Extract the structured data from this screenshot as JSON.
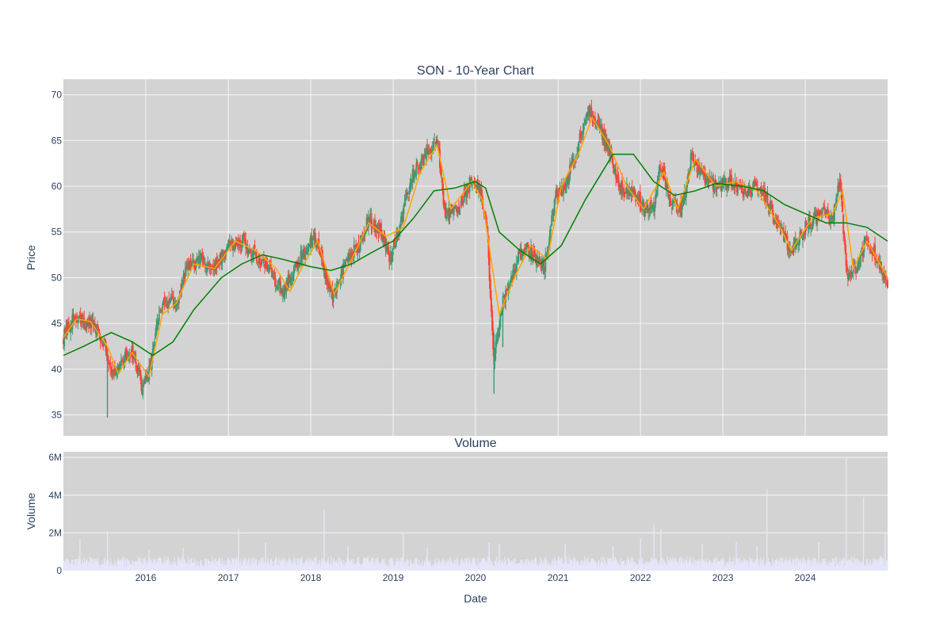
{
  "chart_data": [
    {
      "type": "candlestick",
      "title": "SON - 10-Year Chart",
      "ylabel": "Price",
      "xlabel": "",
      "xlim": [
        "2015-01-01",
        "2024-12-31"
      ],
      "ylim": [
        32.7,
        71.7
      ],
      "y_ticks": [
        35,
        40,
        45,
        50,
        55,
        60,
        65,
        70
      ],
      "grid": true,
      "colors": {
        "increasing": "#3d9970",
        "decreasing": "#ff4136",
        "ma_short": "#ffa500",
        "ma_long": "#008000",
        "background": "#d3d3d3"
      },
      "close_path": [
        [
          "2015-01-01",
          43.5
        ],
        [
          "2015-02-15",
          45.5
        ],
        [
          "2015-04-01",
          45.0
        ],
        [
          "2015-05-15",
          44.8
        ],
        [
          "2015-07-01",
          43.0
        ],
        [
          "2015-07-20",
          41.0
        ],
        [
          "2015-08-20",
          39.0
        ],
        [
          "2015-10-01",
          41.5
        ],
        [
          "2015-11-01",
          42.0
        ],
        [
          "2015-12-15",
          38.0
        ],
        [
          "2016-01-15",
          39.5
        ],
        [
          "2016-03-01",
          46.0
        ],
        [
          "2016-04-01",
          47.5
        ],
        [
          "2016-05-15",
          47.0
        ],
        [
          "2016-07-01",
          51.0
        ],
        [
          "2016-09-01",
          52.0
        ],
        [
          "2016-11-01",
          51.0
        ],
        [
          "2017-01-01",
          53.5
        ],
        [
          "2017-03-01",
          54.0
        ],
        [
          "2017-05-01",
          52.5
        ],
        [
          "2017-07-01",
          51.0
        ],
        [
          "2017-09-01",
          48.5
        ],
        [
          "2017-11-01",
          51.5
        ],
        [
          "2018-01-15",
          54.5
        ],
        [
          "2018-02-15",
          53.0
        ],
        [
          "2018-03-15",
          49.0
        ],
        [
          "2018-04-15",
          48.0
        ],
        [
          "2018-06-01",
          51.5
        ],
        [
          "2018-08-01",
          53.5
        ],
        [
          "2018-09-15",
          56.5
        ],
        [
          "2018-11-01",
          55.5
        ],
        [
          "2018-12-20",
          52.0
        ],
        [
          "2019-02-01",
          56.0
        ],
        [
          "2019-04-01",
          61.5
        ],
        [
          "2019-06-01",
          63.5
        ],
        [
          "2019-07-15",
          65.0
        ],
        [
          "2019-08-20",
          57.0
        ],
        [
          "2019-10-15",
          57.5
        ],
        [
          "2019-12-15",
          61.0
        ],
        [
          "2020-01-20",
          59.5
        ],
        [
          "2020-02-20",
          56.0
        ],
        [
          "2020-03-20",
          41.0
        ],
        [
          "2020-05-01",
          47.0
        ],
        [
          "2020-06-15",
          50.5
        ],
        [
          "2020-08-01",
          53.5
        ],
        [
          "2020-09-15",
          52.5
        ],
        [
          "2020-11-01",
          51.0
        ],
        [
          "2020-12-20",
          59.0
        ],
        [
          "2021-02-01",
          60.0
        ],
        [
          "2021-04-01",
          64.5
        ],
        [
          "2021-05-10",
          68.5
        ],
        [
          "2021-07-01",
          66.5
        ],
        [
          "2021-08-15",
          64.0
        ],
        [
          "2021-10-01",
          60.0
        ],
        [
          "2021-12-01",
          59.5
        ],
        [
          "2022-01-15",
          57.5
        ],
        [
          "2022-03-01",
          58.0
        ],
        [
          "2022-04-01",
          62.5
        ],
        [
          "2022-05-15",
          58.5
        ],
        [
          "2022-07-01",
          57.0
        ],
        [
          "2022-08-15",
          63.5
        ],
        [
          "2022-10-01",
          61.0
        ],
        [
          "2022-12-01",
          60.0
        ],
        [
          "2023-02-01",
          60.5
        ],
        [
          "2023-04-01",
          59.5
        ],
        [
          "2023-06-01",
          60.0
        ],
        [
          "2023-07-15",
          58.5
        ],
        [
          "2023-09-15",
          55.0
        ],
        [
          "2023-11-01",
          53.0
        ],
        [
          "2024-01-15",
          56.0
        ],
        [
          "2024-03-15",
          57.0
        ],
        [
          "2024-05-01",
          56.5
        ],
        [
          "2024-06-01",
          61.0
        ],
        [
          "2024-07-01",
          50.5
        ],
        [
          "2024-08-15",
          51.0
        ],
        [
          "2024-10-01",
          54.5
        ],
        [
          "2024-11-15",
          52.0
        ],
        [
          "2024-12-31",
          49.0
        ]
      ],
      "ma_short": [
        [
          "2015-01-01",
          43.5
        ],
        [
          "2015-03-01",
          45.5
        ],
        [
          "2015-05-01",
          45.2
        ],
        [
          "2015-07-15",
          42.5
        ],
        [
          "2015-09-01",
          39.5
        ],
        [
          "2015-11-01",
          41.8
        ],
        [
          "2016-01-15",
          39.2
        ],
        [
          "2016-03-15",
          46.0
        ],
        [
          "2016-05-15",
          47.2
        ],
        [
          "2016-08-01",
          51.5
        ],
        [
          "2016-11-01",
          51.0
        ],
        [
          "2017-02-01",
          54.0
        ],
        [
          "2017-05-01",
          53.0
        ],
        [
          "2017-08-01",
          51.0
        ],
        [
          "2017-10-01",
          48.5
        ],
        [
          "2017-12-01",
          51.5
        ],
        [
          "2018-02-01",
          54.0
        ],
        [
          "2018-04-15",
          48.2
        ],
        [
          "2018-07-01",
          52.0
        ],
        [
          "2018-09-15",
          56.0
        ],
        [
          "2018-12-01",
          54.5
        ],
        [
          "2019-02-15",
          55.5
        ],
        [
          "2019-05-01",
          61.5
        ],
        [
          "2019-07-15",
          64.5
        ],
        [
          "2019-09-15",
          57.5
        ],
        [
          "2019-12-15",
          60.5
        ],
        [
          "2020-02-01",
          58.5
        ],
        [
          "2020-04-15",
          46.0
        ],
        [
          "2020-07-01",
          50.5
        ],
        [
          "2020-09-01",
          53.5
        ],
        [
          "2020-11-15",
          52.0
        ],
        [
          "2021-01-15",
          60.0
        ],
        [
          "2021-04-01",
          63.5
        ],
        [
          "2021-06-01",
          67.5
        ],
        [
          "2021-08-15",
          64.5
        ],
        [
          "2021-11-01",
          60.0
        ],
        [
          "2022-01-15",
          57.5
        ],
        [
          "2022-04-15",
          61.5
        ],
        [
          "2022-06-15",
          57.5
        ],
        [
          "2022-09-01",
          63.0
        ],
        [
          "2022-12-01",
          60.0
        ],
        [
          "2023-03-01",
          60.5
        ],
        [
          "2023-06-01",
          59.5
        ],
        [
          "2023-09-01",
          56.0
        ],
        [
          "2023-11-01",
          53.0
        ],
        [
          "2024-02-01",
          56.5
        ],
        [
          "2024-05-01",
          57.0
        ],
        [
          "2024-06-15",
          59.5
        ],
        [
          "2024-08-01",
          51.0
        ],
        [
          "2024-10-01",
          54.0
        ],
        [
          "2024-12-31",
          50.0
        ]
      ],
      "ma_long": [
        [
          "2015-01-01",
          41.5
        ],
        [
          "2015-04-01",
          42.5
        ],
        [
          "2015-08-01",
          44.0
        ],
        [
          "2015-11-01",
          43.0
        ],
        [
          "2016-02-01",
          41.5
        ],
        [
          "2016-05-01",
          43.0
        ],
        [
          "2016-08-01",
          46.5
        ],
        [
          "2016-12-01",
          50.0
        ],
        [
          "2017-03-01",
          51.5
        ],
        [
          "2017-06-01",
          52.5
        ],
        [
          "2017-09-01",
          52.0
        ],
        [
          "2018-01-01",
          51.2
        ],
        [
          "2018-04-01",
          50.8
        ],
        [
          "2018-07-01",
          51.5
        ],
        [
          "2018-10-01",
          52.8
        ],
        [
          "2019-01-01",
          54.0
        ],
        [
          "2019-04-01",
          56.5
        ],
        [
          "2019-07-01",
          59.5
        ],
        [
          "2019-10-01",
          59.8
        ],
        [
          "2020-01-01",
          60.5
        ],
        [
          "2020-02-15",
          59.8
        ],
        [
          "2020-04-15",
          55.0
        ],
        [
          "2020-07-15",
          53.0
        ],
        [
          "2020-10-15",
          51.5
        ],
        [
          "2021-01-15",
          53.5
        ],
        [
          "2021-05-01",
          58.5
        ],
        [
          "2021-09-01",
          63.5
        ],
        [
          "2021-12-01",
          63.5
        ],
        [
          "2022-03-01",
          60.5
        ],
        [
          "2022-06-01",
          59.0
        ],
        [
          "2022-09-01",
          59.5
        ],
        [
          "2022-12-01",
          60.3
        ],
        [
          "2023-04-01",
          60.0
        ],
        [
          "2023-07-01",
          59.5
        ],
        [
          "2023-10-01",
          58.0
        ],
        [
          "2024-01-01",
          57.0
        ],
        [
          "2024-04-01",
          56.0
        ],
        [
          "2024-07-01",
          56.0
        ],
        [
          "2024-10-01",
          55.5
        ],
        [
          "2024-12-31",
          54.0
        ]
      ]
    },
    {
      "type": "bar",
      "title": "Volume",
      "xlabel": "Date",
      "ylabel": "Volume",
      "ylim": [
        0,
        6300000
      ],
      "y_ticks": [
        0,
        2000000,
        4000000,
        6000000
      ],
      "y_tick_labels": [
        "0",
        "2M",
        "4M",
        "6M"
      ],
      "x_ticks": [
        "2016-01-01",
        "2017-01-01",
        "2018-01-01",
        "2019-01-01",
        "2020-01-01",
        "2021-01-01",
        "2022-01-01",
        "2023-01-01",
        "2024-01-01"
      ],
      "x_tick_labels": [
        "2016",
        "2017",
        "2018",
        "2019",
        "2020",
        "2021",
        "2022",
        "2023",
        "2024"
      ],
      "color": "#e6e6fa",
      "baseline_volume": 450000,
      "spikes": [
        [
          "2015-03-15",
          1700000
        ],
        [
          "2015-07-15",
          2100000
        ],
        [
          "2016-01-15",
          1100000
        ],
        [
          "2016-06-15",
          1200000
        ],
        [
          "2017-02-15",
          2200000
        ],
        [
          "2017-06-15",
          1500000
        ],
        [
          "2018-03-01",
          3200000
        ],
        [
          "2018-06-15",
          1300000
        ],
        [
          "2019-02-15",
          2000000
        ],
        [
          "2019-06-01",
          1200000
        ],
        [
          "2020-03-01",
          1500000
        ],
        [
          "2020-04-15",
          1400000
        ],
        [
          "2021-02-01",
          1400000
        ],
        [
          "2021-09-01",
          1300000
        ],
        [
          "2022-01-01",
          1700000
        ],
        [
          "2022-03-01",
          2500000
        ],
        [
          "2022-04-01",
          2200000
        ],
        [
          "2022-10-01",
          1400000
        ],
        [
          "2023-03-01",
          1500000
        ],
        [
          "2023-06-01",
          1300000
        ],
        [
          "2023-07-15",
          4300000
        ],
        [
          "2024-03-01",
          1500000
        ],
        [
          "2024-06-30",
          6000000
        ],
        [
          "2024-09-15",
          3900000
        ],
        [
          "2024-12-20",
          2000000
        ]
      ]
    }
  ]
}
